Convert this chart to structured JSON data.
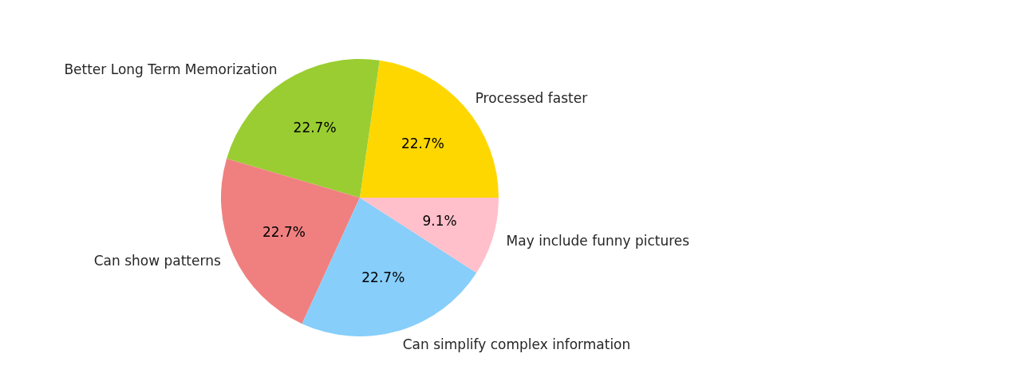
{
  "chart_data": {
    "type": "pie",
    "categories": [
      "Processed faster",
      "Better Long Term Memorization",
      "Can show patterns",
      "Can simplify complex information",
      "May include funny pictures"
    ],
    "values": [
      22.7,
      22.7,
      22.7,
      22.7,
      9.1
    ],
    "colors": [
      "#ffd700",
      "#9acd32",
      "#f08080",
      "#87cefa",
      "#ffc0cb"
    ],
    "value_labels": [
      "22.7%",
      "22.7%",
      "22.7%",
      "22.7%",
      "9.1%"
    ]
  }
}
